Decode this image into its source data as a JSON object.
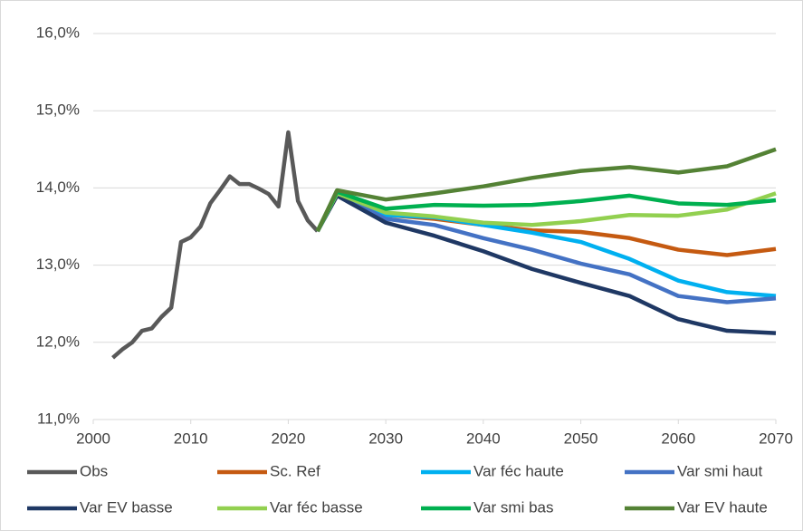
{
  "chart_data": {
    "type": "line",
    "xlim": [
      2000,
      2070
    ],
    "xticks": [
      2000,
      2010,
      2020,
      2030,
      2040,
      2050,
      2060,
      2070
    ],
    "ylim": [
      11,
      16
    ],
    "yticks": [
      {
        "value": 11,
        "label": "11,0%"
      },
      {
        "value": 12,
        "label": "12,0%"
      },
      {
        "value": 13,
        "label": "13,0%"
      },
      {
        "value": 14,
        "label": "14,0%"
      },
      {
        "value": 15,
        "label": "15,0%"
      },
      {
        "value": 16,
        "label": "16,0%"
      }
    ],
    "grid": true,
    "legend": "bottom",
    "series": [
      {
        "name": "Obs",
        "color": "#595959",
        "x": [
          2002,
          2003,
          2004,
          2005,
          2006,
          2007,
          2008,
          2009,
          2010,
          2011,
          2012,
          2013,
          2014,
          2015,
          2016,
          2017,
          2018,
          2019,
          2020,
          2021,
          2022,
          2023
        ],
        "values": [
          11.8,
          11.91,
          12.0,
          12.15,
          12.18,
          12.33,
          12.45,
          13.3,
          13.36,
          13.5,
          13.8,
          13.97,
          14.15,
          14.05,
          14.05,
          13.99,
          13.92,
          13.76,
          14.72,
          13.83,
          13.58,
          13.44
        ]
      },
      {
        "name": "Sc. Ref",
        "color": "#c55a11",
        "x": [
          2023,
          2025,
          2030,
          2035,
          2040,
          2045,
          2050,
          2055,
          2060,
          2065,
          2070
        ],
        "values": [
          13.44,
          13.93,
          13.65,
          13.6,
          13.52,
          13.45,
          13.43,
          13.35,
          13.2,
          13.13,
          13.21
        ]
      },
      {
        "name": "Var féc haute",
        "color": "#00b0f0",
        "x": [
          2023,
          2025,
          2030,
          2035,
          2040,
          2045,
          2050,
          2055,
          2060,
          2065,
          2070
        ],
        "values": [
          13.44,
          13.93,
          13.65,
          13.62,
          13.52,
          13.42,
          13.3,
          13.08,
          12.8,
          12.65,
          12.6
        ]
      },
      {
        "name": "Var smi haut",
        "color": "#4472c4",
        "x": [
          2023,
          2025,
          2030,
          2035,
          2040,
          2045,
          2050,
          2055,
          2060,
          2065,
          2070
        ],
        "values": [
          13.44,
          13.92,
          13.6,
          13.52,
          13.35,
          13.2,
          13.02,
          12.88,
          12.6,
          12.52,
          12.57
        ]
      },
      {
        "name": "Var EV basse",
        "color": "#1f3864",
        "x": [
          2023,
          2025,
          2030,
          2035,
          2040,
          2045,
          2050,
          2055,
          2060,
          2065,
          2070
        ],
        "values": [
          13.44,
          13.9,
          13.55,
          13.38,
          13.18,
          12.95,
          12.77,
          12.6,
          12.3,
          12.15,
          12.12
        ]
      },
      {
        "name": "Var féc basse",
        "color": "#92d050",
        "x": [
          2023,
          2025,
          2030,
          2035,
          2040,
          2045,
          2050,
          2055,
          2060,
          2065,
          2070
        ],
        "values": [
          13.44,
          13.93,
          13.68,
          13.63,
          13.55,
          13.52,
          13.57,
          13.65,
          13.64,
          13.72,
          13.93
        ]
      },
      {
        "name": "Var smi bas",
        "color": "#00b050",
        "x": [
          2023,
          2025,
          2030,
          2035,
          2040,
          2045,
          2050,
          2055,
          2060,
          2065,
          2070
        ],
        "values": [
          13.44,
          13.95,
          13.73,
          13.78,
          13.77,
          13.78,
          13.83,
          13.9,
          13.8,
          13.78,
          13.84
        ]
      },
      {
        "name": "Var EV haute",
        "color": "#548235",
        "x": [
          2023,
          2025,
          2030,
          2035,
          2040,
          2045,
          2050,
          2055,
          2060,
          2065,
          2070
        ],
        "values": [
          13.44,
          13.97,
          13.85,
          13.93,
          14.02,
          14.13,
          14.22,
          14.27,
          14.2,
          14.28,
          14.5
        ]
      }
    ]
  }
}
